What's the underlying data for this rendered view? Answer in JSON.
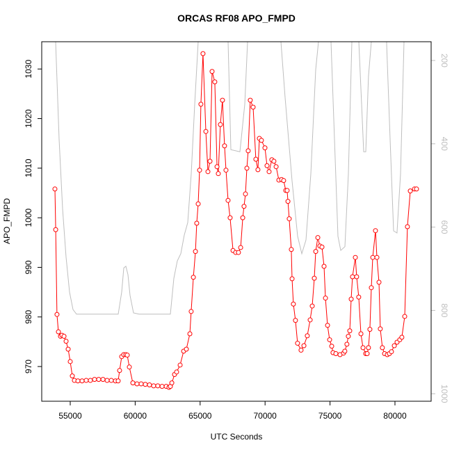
{
  "chart_data": {
    "type": "line",
    "title": "ORCAS RF08 APO_FMPD",
    "x_label": "UTC Seconds",
    "y_label": "APO_FMPD",
    "xlim": [
      52805,
      82785
    ],
    "xticks": [
      55000,
      60000,
      65000,
      70000,
      75000,
      80000
    ],
    "ylim": [
      963,
      1035.5
    ],
    "yticks": [
      970,
      980,
      990,
      1000,
      1010,
      1020,
      1030
    ],
    "y2lim": [
      1018,
      155
    ],
    "y2ticks": [
      200,
      400,
      600,
      800,
      1000
    ],
    "series": [
      {
        "color": "#bebebe",
        "axis": "y2",
        "x": [
          53876,
          54143,
          54411,
          54679,
          54946,
          55214,
          55482,
          58693,
          58961,
          59122,
          59282,
          59443,
          59604,
          59870,
          60299,
          62708,
          62976,
          63243,
          63511,
          63779,
          64046,
          64314,
          64582,
          64849,
          66295,
          67151,
          67365,
          68061,
          68436,
          68650,
          71219,
          71541,
          72076,
          72504,
          72826,
          73147,
          73522,
          73896,
          74110,
          75074,
          75341,
          75609,
          75823,
          76144,
          76412,
          76680,
          77215,
          77429,
          77590,
          77750,
          77964,
          78179,
          79356,
          79624,
          79892,
          80159,
          80427,
          80695
        ],
        "values": [
          155,
          389,
          556,
          672,
          756,
          798,
          809,
          809,
          756,
          698,
          694,
          714,
          764,
          806,
          809,
          809,
          723,
          681,
          664,
          619,
          589,
          472,
          305,
          155,
          155,
          155,
          414,
          419,
          305,
          155,
          155,
          289,
          489,
          622,
          664,
          631,
          472,
          222,
          155,
          155,
          389,
          622,
          656,
          647,
          472,
          155,
          155,
          305,
          419,
          419,
          238,
          155,
          155,
          389,
          609,
          614,
          472,
          155
        ]
      },
      {
        "color": "#ff0000",
        "marker": "circle",
        "x": [
          53820,
          53880,
          53980,
          54090,
          54250,
          54360,
          54520,
          54680,
          54840,
          55000,
          55160,
          55320,
          55590,
          55910,
          56230,
          56550,
          56870,
          57190,
          57520,
          57840,
          58160,
          58480,
          58690,
          58800,
          58960,
          59120,
          59280,
          59390,
          59550,
          59820,
          60140,
          60460,
          60780,
          61100,
          61420,
          61740,
          62070,
          62390,
          62600,
          62710,
          62820,
          63030,
          63190,
          63460,
          63730,
          63940,
          64210,
          64310,
          64480,
          64640,
          64740,
          64850,
          64960,
          65060,
          65220,
          65440,
          65600,
          65760,
          65920,
          66130,
          66300,
          66400,
          66560,
          66720,
          66880,
          66990,
          67150,
          67310,
          67530,
          67740,
          67950,
          68120,
          68280,
          68380,
          68490,
          68600,
          68700,
          68860,
          69080,
          69290,
          69450,
          69560,
          69720,
          69990,
          70150,
          70310,
          70520,
          70680,
          70850,
          71060,
          71270,
          71430,
          71590,
          71700,
          71760,
          71860,
          72020,
          72080,
          72180,
          72340,
          72500,
          72770,
          72990,
          73250,
          73470,
          73630,
          73790,
          73900,
          74060,
          74220,
          74380,
          74540,
          74650,
          74810,
          74970,
          75130,
          75230,
          75450,
          75770,
          76040,
          76140,
          76300,
          76410,
          76520,
          76630,
          76730,
          76950,
          77050,
          77210,
          77380,
          77540,
          77750,
          77860,
          77960,
          78070,
          78180,
          78290,
          78500,
          78610,
          78770,
          78870,
          79030,
          79200,
          79410,
          79570,
          79730,
          79950,
          80160,
          80370,
          80530,
          80750,
          80960,
          81180,
          81500,
          81660
        ],
        "values": [
          1005.8,
          997.6,
          980.5,
          977.0,
          976.1,
          976.3,
          976.1,
          975.1,
          973.5,
          971.0,
          968.1,
          967.2,
          967.1,
          967.1,
          967.2,
          967.2,
          967.4,
          967.4,
          967.4,
          967.2,
          967.2,
          967.1,
          967.1,
          969.2,
          972.0,
          972.4,
          972.4,
          972.3,
          969.9,
          966.7,
          966.5,
          966.5,
          966.4,
          966.3,
          966.1,
          966.1,
          966.0,
          966.0,
          965.8,
          966.0,
          966.7,
          968.4,
          968.9,
          970.3,
          973.1,
          973.5,
          976.6,
          981.1,
          988.0,
          993.2,
          998.9,
          1002.8,
          1009.6,
          1022.9,
          1033.1,
          1017.4,
          1009.3,
          1011.4,
          1029.5,
          1027.4,
          1010.3,
          1008.9,
          1018.8,
          1023.7,
          1014.5,
          1009.6,
          1003.5,
          1000.0,
          993.4,
          993.0,
          993.0,
          994.0,
          1000.0,
          1002.3,
          1004.8,
          1010.0,
          1013.5,
          1023.7,
          1022.3,
          1011.8,
          1009.7,
          1016.0,
          1015.6,
          1014.1,
          1010.5,
          1009.3,
          1011.7,
          1011.4,
          1010.3,
          1007.6,
          1007.7,
          1007.5,
          1005.5,
          1005.5,
          1003.3,
          999.8,
          993.6,
          987.7,
          982.6,
          979.3,
          974.7,
          973.3,
          974.2,
          976.2,
          979.4,
          982.2,
          987.8,
          993.2,
          996.0,
          994.3,
          994.1,
          990.2,
          983.8,
          978.3,
          975.4,
          974.1,
          972.8,
          972.6,
          972.4,
          972.7,
          973.1,
          974.5,
          976.1,
          977.2,
          983.6,
          988.1,
          992.0,
          988.1,
          984.0,
          976.6,
          973.8,
          972.6,
          972.6,
          973.8,
          977.5,
          985.9,
          992.0,
          997.4,
          992.0,
          987.0,
          977.6,
          973.8,
          972.6,
          972.4,
          972.6,
          973.0,
          974.2,
          974.9,
          975.4,
          975.9,
          980.1,
          998.2,
          1005.4,
          1005.8,
          1005.8
        ]
      }
    ]
  }
}
